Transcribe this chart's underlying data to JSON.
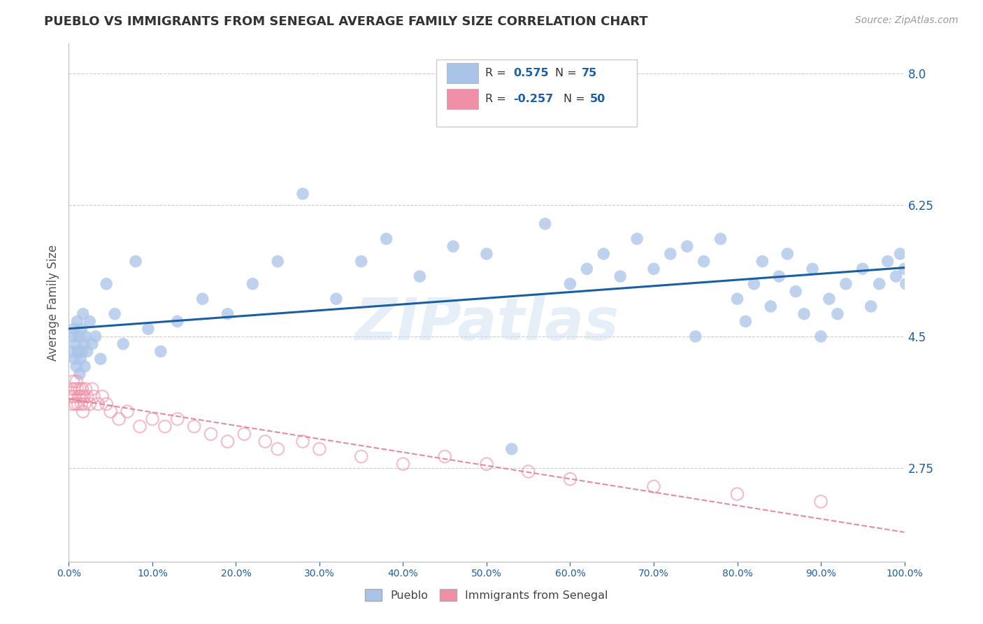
{
  "title": "PUEBLO VS IMMIGRANTS FROM SENEGAL AVERAGE FAMILY SIZE CORRELATION CHART",
  "source": "Source: ZipAtlas.com",
  "ylabel": "Average Family Size",
  "xmin": 0.0,
  "xmax": 100.0,
  "ymin": 1.5,
  "ymax": 8.4,
  "yticks": [
    2.75,
    4.5,
    6.25,
    8.0
  ],
  "xticks": [
    0.0,
    10.0,
    20.0,
    30.0,
    40.0,
    50.0,
    60.0,
    70.0,
    80.0,
    90.0,
    100.0
  ],
  "xtick_labels": [
    "0.0%",
    "10.0%",
    "20.0%",
    "30.0%",
    "40.0%",
    "50.0%",
    "60.0%",
    "70.0%",
    "80.0%",
    "90.0%",
    "100.0%"
  ],
  "pueblo_color": "#aac4e8",
  "senegal_color": "#f090a8",
  "trend_pueblo_color": "#1a5fa0",
  "trend_senegal_color": "#e08090",
  "pueblo_R": 0.575,
  "pueblo_N": 75,
  "senegal_R": -0.257,
  "senegal_N": 50,
  "legend_color": "#1a5fa8",
  "watermark": "ZIPatlas",
  "background_color": "#ffffff",
  "grid_color": "#cccccc",
  "title_color": "#333333",
  "axis_label_color": "#555555",
  "tick_color": "#1a5fa8",
  "pueblo_x": [
    0.3,
    0.5,
    0.6,
    0.7,
    0.8,
    0.9,
    1.0,
    1.1,
    1.2,
    1.3,
    1.4,
    1.5,
    1.6,
    1.7,
    1.8,
    1.9,
    2.0,
    2.2,
    2.5,
    2.8,
    3.2,
    3.8,
    4.5,
    5.5,
    6.5,
    8.0,
    9.5,
    11.0,
    13.0,
    16.0,
    19.0,
    22.0,
    25.0,
    28.0,
    32.0,
    35.0,
    38.0,
    42.0,
    46.0,
    50.0,
    53.0,
    57.0,
    60.0,
    62.0,
    64.0,
    66.0,
    68.0,
    70.0,
    72.0,
    74.0,
    75.0,
    76.0,
    78.0,
    80.0,
    81.0,
    82.0,
    83.0,
    84.0,
    85.0,
    86.0,
    87.0,
    88.0,
    89.0,
    90.0,
    91.0,
    92.0,
    93.0,
    95.0,
    96.0,
    97.0,
    98.0,
    99.0,
    99.5,
    100.0,
    100.2
  ],
  "pueblo_y": [
    4.3,
    4.5,
    4.6,
    4.2,
    4.4,
    4.1,
    4.7,
    4.3,
    4.5,
    4.0,
    4.2,
    4.6,
    4.3,
    4.8,
    4.4,
    4.1,
    4.5,
    4.3,
    4.7,
    4.4,
    4.5,
    4.2,
    5.2,
    4.8,
    4.4,
    5.5,
    4.6,
    4.3,
    4.7,
    5.0,
    4.8,
    5.2,
    5.5,
    6.4,
    5.0,
    5.5,
    5.8,
    5.3,
    5.7,
    5.6,
    3.0,
    6.0,
    5.2,
    5.4,
    5.6,
    5.3,
    5.8,
    5.4,
    5.6,
    5.7,
    4.5,
    5.5,
    5.8,
    5.0,
    4.7,
    5.2,
    5.5,
    4.9,
    5.3,
    5.6,
    5.1,
    4.8,
    5.4,
    4.5,
    5.0,
    4.8,
    5.2,
    5.4,
    4.9,
    5.2,
    5.5,
    5.3,
    5.6,
    5.4,
    5.2
  ],
  "senegal_x": [
    0.2,
    0.3,
    0.4,
    0.5,
    0.6,
    0.7,
    0.8,
    0.9,
    1.0,
    1.1,
    1.2,
    1.3,
    1.4,
    1.5,
    1.6,
    1.7,
    1.8,
    1.9,
    2.0,
    2.2,
    2.5,
    2.8,
    3.0,
    3.5,
    4.0,
    4.5,
    5.0,
    6.0,
    7.0,
    8.5,
    10.0,
    11.5,
    13.0,
    15.0,
    17.0,
    19.0,
    21.0,
    23.5,
    25.0,
    28.0,
    30.0,
    35.0,
    40.0,
    45.0,
    50.0,
    55.0,
    60.0,
    70.0,
    80.0,
    90.0
  ],
  "senegal_y": [
    3.7,
    3.8,
    3.6,
    3.9,
    3.7,
    3.8,
    3.6,
    3.9,
    3.8,
    3.6,
    3.7,
    3.8,
    3.7,
    3.6,
    3.8,
    3.5,
    3.7,
    3.6,
    3.8,
    3.7,
    3.6,
    3.8,
    3.7,
    3.6,
    3.7,
    3.6,
    3.5,
    3.4,
    3.5,
    3.3,
    3.4,
    3.3,
    3.4,
    3.3,
    3.2,
    3.1,
    3.2,
    3.1,
    3.0,
    3.1,
    3.0,
    2.9,
    2.8,
    2.9,
    2.8,
    2.7,
    2.6,
    2.5,
    2.4,
    2.3
  ]
}
